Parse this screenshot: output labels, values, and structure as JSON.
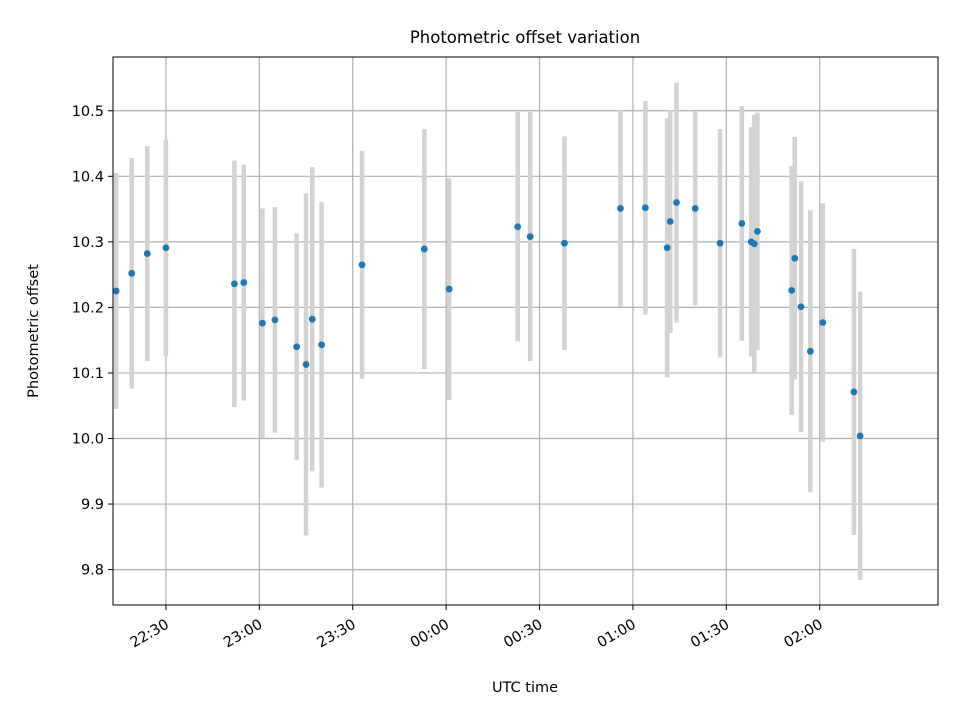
{
  "chart_data": {
    "type": "scatter",
    "title": "Photometric offset variation",
    "xlabel": "UTC time",
    "ylabel": "Photometric offset",
    "x_ticks": [
      {
        "t": "22:30",
        "label": "22:30"
      },
      {
        "t": "23:00",
        "label": "23:00"
      },
      {
        "t": "23:30",
        "label": "23:30"
      },
      {
        "t": "00:00",
        "label": "00:00"
      },
      {
        "t": "00:30",
        "label": "00:30"
      },
      {
        "t": "01:00",
        "label": "01:00"
      },
      {
        "t": "01:30",
        "label": "01:30"
      },
      {
        "t": "02:00",
        "label": "02:00"
      }
    ],
    "y_ticks": [
      {
        "value": 9.8,
        "label": "9.8"
      },
      {
        "value": 9.9,
        "label": "9.9"
      },
      {
        "value": 10.0,
        "label": "10.0"
      },
      {
        "value": 10.1,
        "label": "10.1"
      },
      {
        "value": 10.2,
        "label": "10.2"
      },
      {
        "value": 10.3,
        "label": "10.3"
      },
      {
        "value": 10.4,
        "label": "10.4"
      },
      {
        "value": 10.5,
        "label": "10.5"
      }
    ],
    "xlim": [
      "22:13",
      "02:38"
    ],
    "ylim": [
      9.746,
      10.582
    ],
    "grid": true,
    "colors": {
      "point": "#1f77b4",
      "errorbar": "#d3d3d3",
      "grid": "#b0b0b0"
    },
    "points": [
      {
        "t": "22:14",
        "y": 10.225,
        "yerr": 0.18
      },
      {
        "t": "22:19",
        "y": 10.252,
        "yerr": 0.176
      },
      {
        "t": "22:24",
        "y": 10.282,
        "yerr": 0.164
      },
      {
        "t": "22:30",
        "y": 10.291,
        "yerr": 0.165
      },
      {
        "t": "22:52",
        "y": 10.236,
        "yerr": 0.188
      },
      {
        "t": "22:55",
        "y": 10.238,
        "yerr": 0.18
      },
      {
        "t": "23:01",
        "y": 10.176,
        "yerr": 0.175
      },
      {
        "t": "23:05",
        "y": 10.181,
        "yerr": 0.172
      },
      {
        "t": "23:12",
        "y": 10.14,
        "yerr": 0.173
      },
      {
        "t": "23:15",
        "y": 10.113,
        "yerr": 0.261
      },
      {
        "t": "23:17",
        "y": 10.182,
        "yerr": 0.232
      },
      {
        "t": "23:20",
        "y": 10.143,
        "yerr": 0.218
      },
      {
        "t": "23:33",
        "y": 10.265,
        "yerr": 0.174
      },
      {
        "t": "23:53",
        "y": 10.289,
        "yerr": 0.183
      },
      {
        "t": "00:01",
        "y": 10.228,
        "yerr": 0.169
      },
      {
        "t": "00:23",
        "y": 10.323,
        "yerr": 0.175
      },
      {
        "t": "00:27",
        "y": 10.308,
        "yerr": 0.19
      },
      {
        "t": "00:38",
        "y": 10.298,
        "yerr": 0.163
      },
      {
        "t": "00:56",
        "y": 10.351,
        "yerr": 0.15
      },
      {
        "t": "01:04",
        "y": 10.352,
        "yerr": 0.163
      },
      {
        "t": "01:11",
        "y": 10.291,
        "yerr": 0.198
      },
      {
        "t": "01:12",
        "y": 10.331,
        "yerr": 0.17
      },
      {
        "t": "01:14",
        "y": 10.36,
        "yerr": 0.183
      },
      {
        "t": "01:20",
        "y": 10.351,
        "yerr": 0.148
      },
      {
        "t": "01:28",
        "y": 10.298,
        "yerr": 0.174
      },
      {
        "t": "01:35",
        "y": 10.328,
        "yerr": 0.179
      },
      {
        "t": "01:38",
        "y": 10.3,
        "yerr": 0.175
      },
      {
        "t": "01:39",
        "y": 10.297,
        "yerr": 0.197
      },
      {
        "t": "01:40",
        "y": 10.316,
        "yerr": 0.181
      },
      {
        "t": "01:51",
        "y": 10.226,
        "yerr": 0.19
      },
      {
        "t": "01:52",
        "y": 10.275,
        "yerr": 0.185
      },
      {
        "t": "01:54",
        "y": 10.201,
        "yerr": 0.191
      },
      {
        "t": "01:57",
        "y": 10.133,
        "yerr": 0.215
      },
      {
        "t": "02:01",
        "y": 10.177,
        "yerr": 0.182
      },
      {
        "t": "02:11",
        "y": 10.071,
        "yerr": 0.218
      },
      {
        "t": "02:13",
        "y": 10.004,
        "yerr": 0.22
      }
    ]
  }
}
